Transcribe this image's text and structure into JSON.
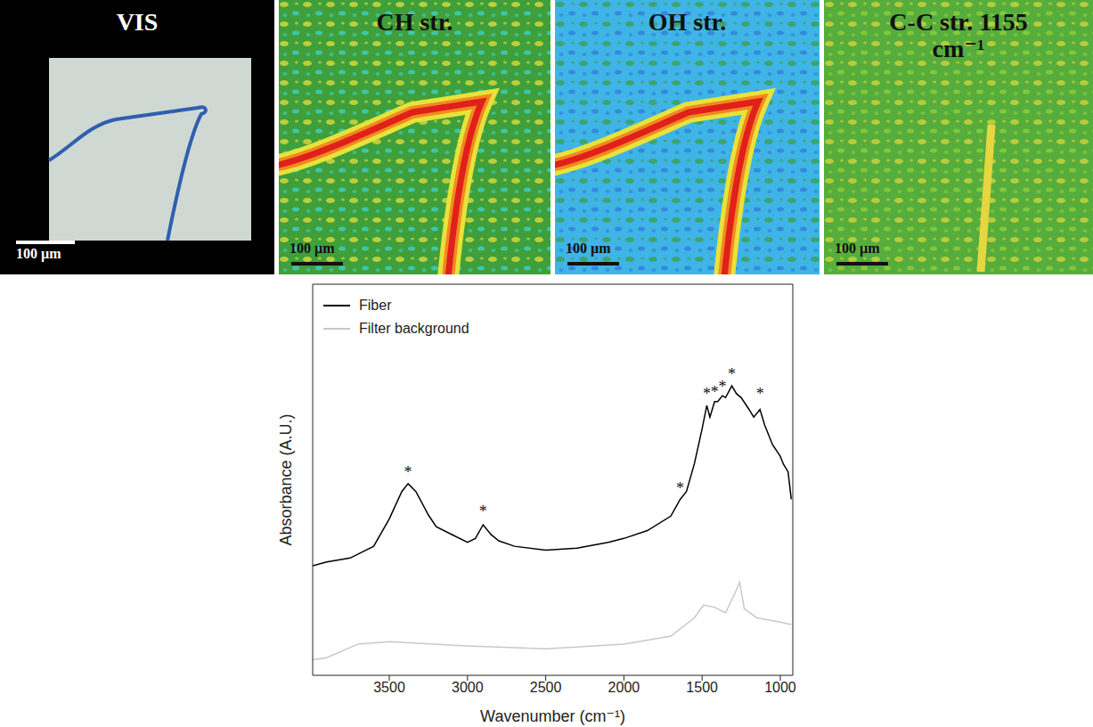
{
  "panels": [
    {
      "title": "VIS",
      "scale_bar": "100 µm"
    },
    {
      "title": "CH str.",
      "scale_bar": "100 µm"
    },
    {
      "title": "OH str.",
      "scale_bar": "100 µm"
    },
    {
      "title": "C-C str. 1155 cm⁻¹",
      "scale_bar": "100 µm"
    }
  ],
  "chart_data": {
    "type": "line",
    "xlabel": "Wavenumber (cm⁻¹)",
    "ylabel": "Absorbance (A.U.)",
    "xlim": [
      3990,
      920
    ],
    "xticks": [
      3500,
      3000,
      2500,
      2000,
      1500,
      1000
    ],
    "ylim": [
      0,
      100
    ],
    "tick_labels": "x",
    "legend": "top-left",
    "series": [
      {
        "name": "Fiber",
        "color": "#000000",
        "x": [
          3990,
          3900,
          3750,
          3600,
          3500,
          3420,
          3380,
          3330,
          3250,
          3200,
          3100,
          3000,
          2950,
          2900,
          2850,
          2800,
          2700,
          2500,
          2300,
          2100,
          2000,
          1850,
          1700,
          1640,
          1600,
          1550,
          1500,
          1470,
          1450,
          1420,
          1400,
          1370,
          1350,
          1310,
          1280,
          1250,
          1200,
          1170,
          1130,
          1100,
          1050,
          1000,
          980,
          950,
          930
        ],
        "values": [
          28,
          29,
          30,
          33,
          40,
          47,
          49,
          47,
          41,
          38,
          36,
          34,
          35,
          38.5,
          36,
          34.4,
          33,
          32,
          32.5,
          34,
          35,
          37,
          40.7,
          45,
          47,
          54,
          63,
          69,
          66,
          70,
          70,
          71.5,
          71,
          74,
          72,
          71,
          68,
          66,
          68,
          64,
          59,
          56,
          54,
          52,
          45
        ]
      },
      {
        "name": "Filter background",
        "color": "#c8c8c8",
        "x": [
          3990,
          3900,
          3700,
          3500,
          3000,
          2500,
          2000,
          1700,
          1550,
          1490,
          1420,
          1350,
          1290,
          1260,
          1230,
          1150,
          1000,
          930
        ],
        "values": [
          4,
          4.5,
          8,
          8.6,
          7.5,
          6.8,
          8,
          10,
          14.7,
          18,
          17.4,
          16,
          21,
          23.8,
          17,
          14.7,
          13.6,
          13
        ]
      }
    ],
    "annotations": [
      {
        "text": "*",
        "x": 3380,
        "y": 52
      },
      {
        "text": "*",
        "x": 2900,
        "y": 42
      },
      {
        "text": "*",
        "x": 1640,
        "y": 48
      },
      {
        "text": "*",
        "x": 1470,
        "y": 72
      },
      {
        "text": "*",
        "x": 1420,
        "y": 72.5
      },
      {
        "text": "*",
        "x": 1370,
        "y": 74
      },
      {
        "text": "*",
        "x": 1310,
        "y": 77
      },
      {
        "text": "*",
        "x": 1130,
        "y": 72
      }
    ]
  }
}
